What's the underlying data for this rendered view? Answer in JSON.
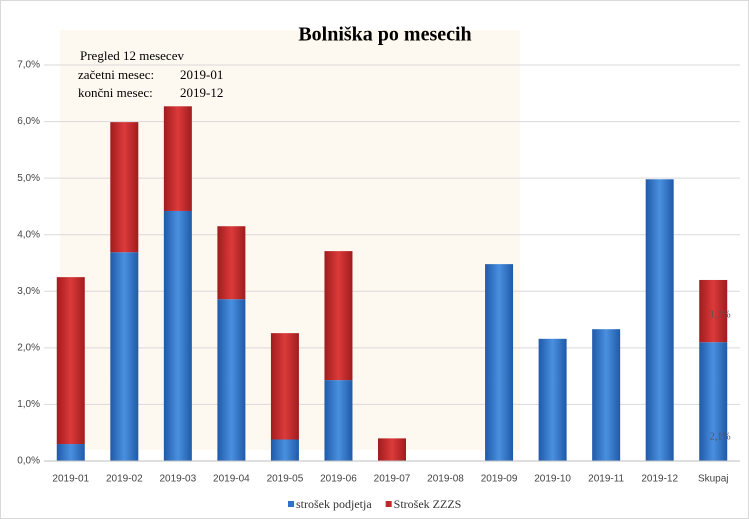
{
  "chart_data": {
    "type": "stacked_bar",
    "title": "Bolniška po mesecih",
    "annotations": [
      "Pregled 12 mesecev",
      "začetni mesec:",
      "2019-01",
      "končni mesec:",
      "2019-12"
    ],
    "categories": [
      "2019-01",
      "2019-02",
      "2019-03",
      "2019-04",
      "2019-05",
      "2019-06",
      "2019-07",
      "2019-08",
      "2019-09",
      "2019-10",
      "2019-11",
      "2019-12",
      "Skupaj"
    ],
    "series": [
      {
        "name": "strošek podjetja",
        "color": "#2e73c6",
        "values": [
          0.3,
          3.69,
          4.42,
          2.86,
          0.38,
          1.43,
          0,
          0,
          3.48,
          2.16,
          2.33,
          4.98,
          2.1
        ],
        "value_labels": [
          null,
          null,
          null,
          null,
          null,
          null,
          null,
          null,
          null,
          null,
          null,
          null,
          "2,1%"
        ]
      },
      {
        "name": "Strošek ZZZS",
        "color": "#c0282a",
        "values": [
          2.95,
          2.3,
          1.85,
          1.29,
          1.88,
          2.28,
          0.4,
          0,
          0,
          0,
          0,
          0,
          1.1
        ],
        "value_labels": [
          null,
          null,
          null,
          null,
          null,
          null,
          null,
          null,
          null,
          null,
          null,
          null,
          "1,1%"
        ]
      }
    ],
    "ylim": [
      0,
      7
    ],
    "yticks": [
      {
        "value": 0,
        "label": "0,0%"
      },
      {
        "value": 1,
        "label": "1,0%"
      },
      {
        "value": 2,
        "label": "2,0%"
      },
      {
        "value": 3,
        "label": "3,0%"
      },
      {
        "value": 4,
        "label": "4,0%"
      },
      {
        "value": 5,
        "label": "5,0%"
      },
      {
        "value": 6,
        "label": "6,0%"
      },
      {
        "value": 7,
        "label": "7,0%"
      }
    ],
    "grid": true,
    "legend": "bottom"
  }
}
